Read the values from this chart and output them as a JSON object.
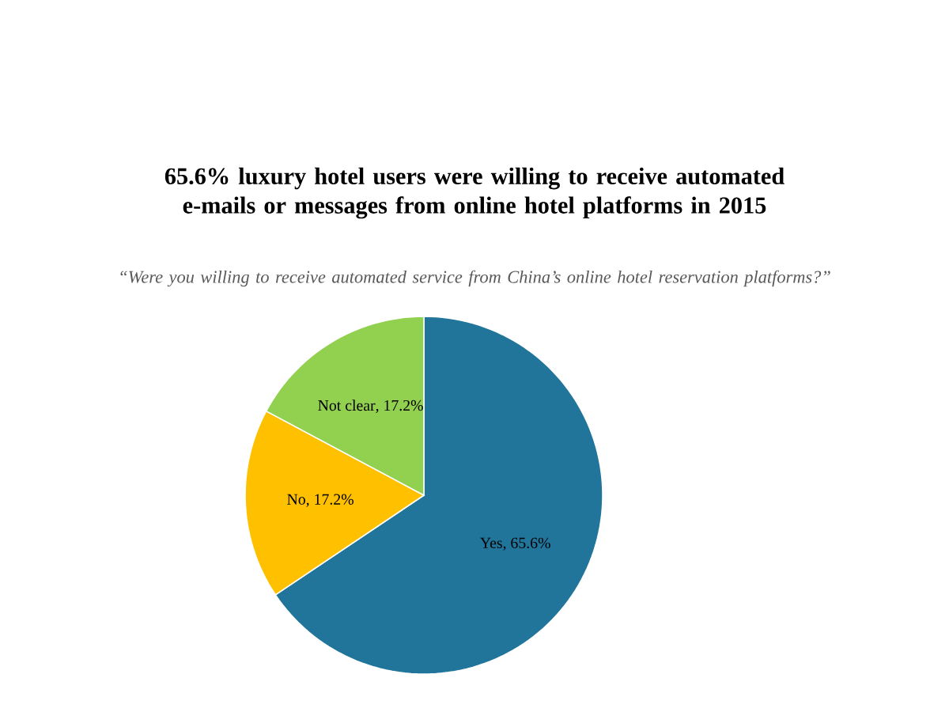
{
  "chart_data": {
    "type": "pie",
    "title": "65.6% luxury hotel users were willing to receive automated e-mails or messages from online hotel platforms in 2015",
    "subtitle": "“Were you willing to receive automated service from China’s online hotel reservation platforms?”",
    "categories": [
      "Yes",
      "No",
      "Not clear"
    ],
    "values": [
      65.6,
      17.2,
      17.2
    ],
    "value_labels": [
      ", 65.6%",
      ", 17.2%",
      ", 17.2%"
    ],
    "colors": [
      "#21759b",
      "#ffc000",
      "#92d050"
    ]
  }
}
